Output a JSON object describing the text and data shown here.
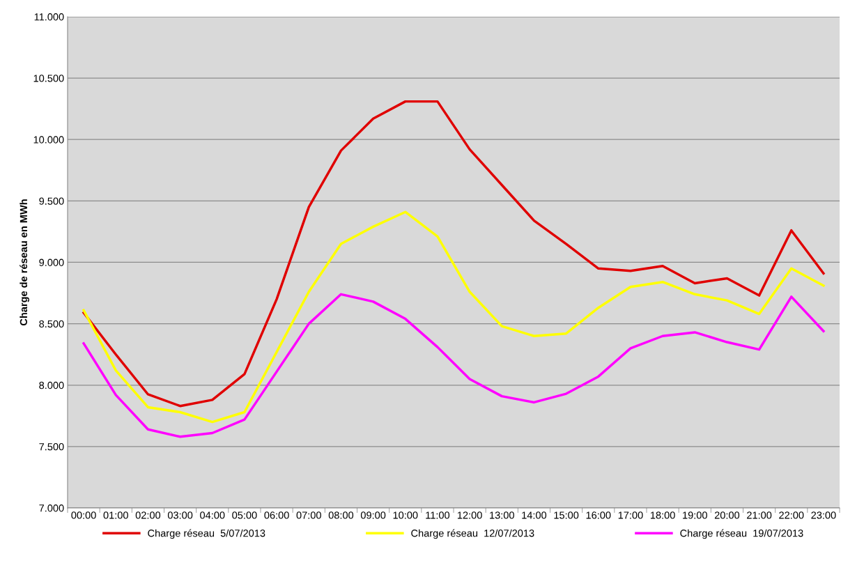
{
  "chart_data": {
    "type": "line",
    "ylabel": "Charge de réseau en MWh",
    "categories": [
      "00:00",
      "01:00",
      "02:00",
      "03:00",
      "04:00",
      "05:00",
      "06:00",
      "07:00",
      "08:00",
      "09:00",
      "10:00",
      "11:00",
      "12:00",
      "13:00",
      "14:00",
      "15:00",
      "16:00",
      "17:00",
      "18:00",
      "19:00",
      "20:00",
      "21:00",
      "22:00",
      "23:00"
    ],
    "series": [
      {
        "name": "Charge réseau  5/07/2013",
        "color": "#e00000",
        "values": [
          8590,
          8250,
          7925,
          7830,
          7880,
          8090,
          8700,
          9450,
          9910,
          10170,
          10310,
          10310,
          9920,
          9630,
          9340,
          9150,
          8950,
          8930,
          8970,
          8830,
          8870,
          8730,
          9260,
          8910
        ]
      },
      {
        "name": "Charge réseau  12/07/2013",
        "color": "#ffff00",
        "values": [
          8610,
          8120,
          7820,
          7780,
          7700,
          7780,
          8270,
          8760,
          9150,
          9290,
          9410,
          9210,
          8760,
          8480,
          8400,
          8420,
          8630,
          8800,
          8840,
          8740,
          8690,
          8580,
          8950,
          8810
        ]
      },
      {
        "name": "Charge réseau  19/07/2013",
        "color": "#ff00ff",
        "values": [
          8340,
          7920,
          7640,
          7580,
          7610,
          7720,
          8110,
          8500,
          8740,
          8680,
          8540,
          8310,
          8050,
          7910,
          7860,
          7930,
          8070,
          8300,
          8400,
          8430,
          8350,
          8290,
          8720,
          8440
        ]
      }
    ],
    "ylim": [
      7000,
      11000
    ],
    "yticks": [
      {
        "value": 7000,
        "label": "7.000"
      },
      {
        "value": 7500,
        "label": "7.500"
      },
      {
        "value": 8000,
        "label": "8.000"
      },
      {
        "value": 8500,
        "label": "8.500"
      },
      {
        "value": 9000,
        "label": "9.000"
      },
      {
        "value": 9500,
        "label": "9.500"
      },
      {
        "value": 10000,
        "label": "10.000"
      },
      {
        "value": 10500,
        "label": "10.500"
      },
      {
        "value": 11000,
        "label": "11.000"
      }
    ],
    "grid": "y",
    "legend": "bottom",
    "marker": "none",
    "line_style": "solid"
  }
}
